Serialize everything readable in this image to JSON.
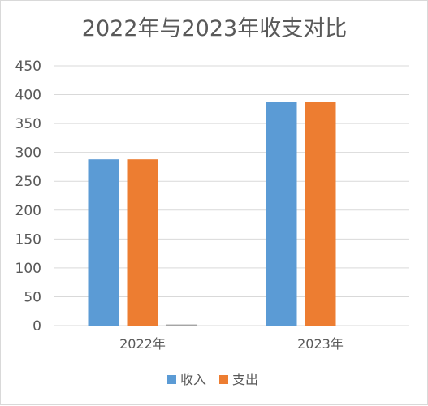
{
  "chart_data": {
    "type": "bar",
    "title": "2022年与2023年收支对比",
    "categories": [
      "2022年",
      "2023年"
    ],
    "series": [
      {
        "name": "收入",
        "color": "#5b9bd5",
        "values": [
          288,
          387
        ]
      },
      {
        "name": "支出",
        "color": "#ed7d31",
        "values": [
          288,
          387
        ]
      },
      {
        "name": "",
        "color": "#a5a5a5",
        "values": [
          2,
          0
        ]
      }
    ],
    "ylim": [
      0,
      450
    ],
    "yticks": [
      0,
      50,
      100,
      150,
      200,
      250,
      300,
      350,
      400,
      450
    ],
    "grid": true,
    "legend": "bottom",
    "gridColor": "#d9d9d9"
  }
}
